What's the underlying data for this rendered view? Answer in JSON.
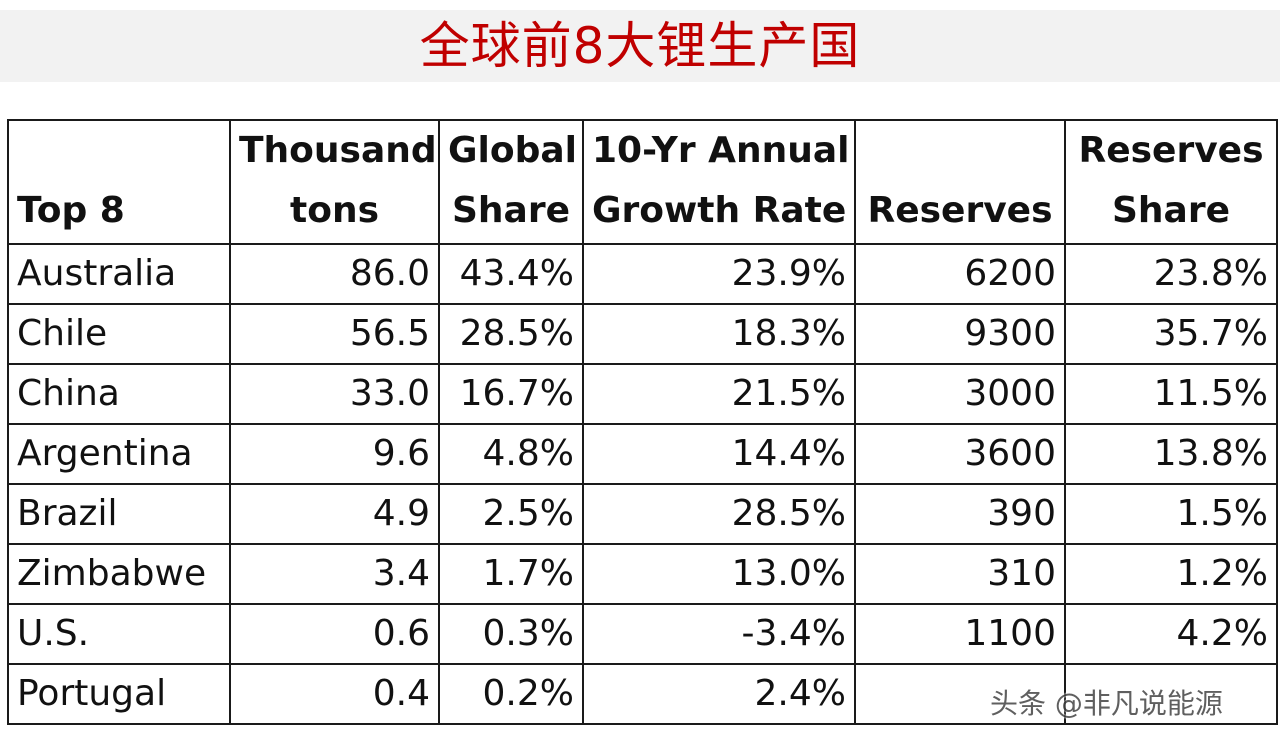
{
  "title": "全球前8大锂生产国",
  "watermark": "头条 @非凡说能源",
  "chart_data": {
    "type": "table",
    "columns": [
      "Top 8",
      "Thousand tons",
      "Global Share",
      "10-Yr Annual Growth Rate",
      "Reserves",
      "Reserves Share"
    ],
    "header_lines": [
      [
        "",
        "Top 8"
      ],
      [
        "Thousand",
        "tons"
      ],
      [
        "Global",
        "Share"
      ],
      [
        "10-Yr Annual",
        "Growth Rate"
      ],
      [
        "",
        "Reserves"
      ],
      [
        "Reserves",
        "Share"
      ]
    ],
    "rows": [
      [
        "Australia",
        "86.0",
        "43.4%",
        "23.9%",
        "6200",
        "23.8%"
      ],
      [
        "Chile",
        "56.5",
        "28.5%",
        "18.3%",
        "9300",
        "35.7%"
      ],
      [
        "China",
        "33.0",
        "16.7%",
        "21.5%",
        "3000",
        "11.5%"
      ],
      [
        "Argentina",
        "9.6",
        "4.8%",
        "14.4%",
        "3600",
        "13.8%"
      ],
      [
        "Brazil",
        "4.9",
        "2.5%",
        "28.5%",
        "390",
        "1.5%"
      ],
      [
        "Zimbabwe",
        "3.4",
        "1.7%",
        "13.0%",
        "310",
        "1.2%"
      ],
      [
        "U.S.",
        "0.6",
        "0.3%",
        "-3.4%",
        "1100",
        "4.2%"
      ],
      [
        "Portugal",
        "0.4",
        "0.2%",
        "2.4%",
        "",
        ""
      ]
    ]
  },
  "colors": {
    "title": "#c00000",
    "title_band": "#f2f2f2",
    "grid": "#1a1a1a"
  }
}
